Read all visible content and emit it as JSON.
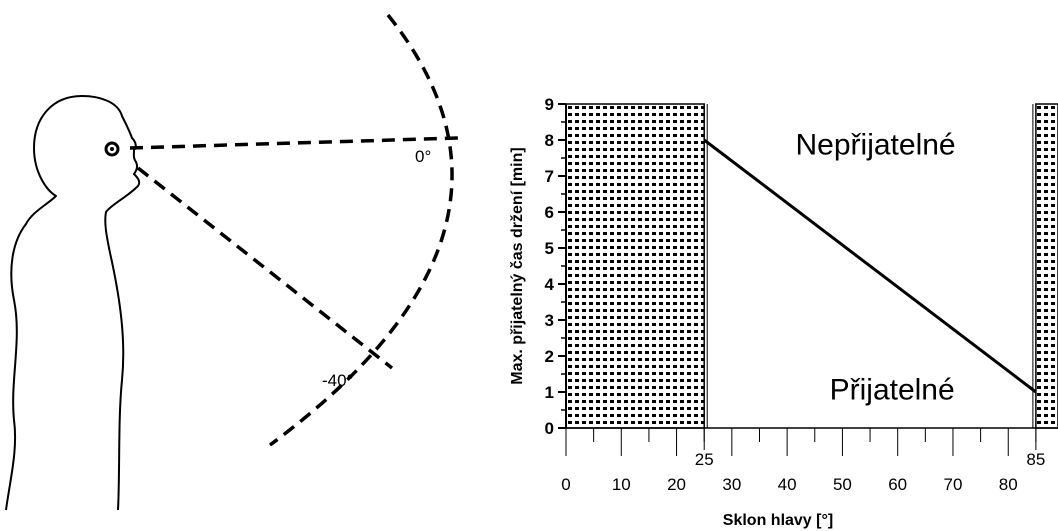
{
  "figure": {
    "angle_labels": [
      "0°",
      "-40°"
    ]
  },
  "chart_data": {
    "type": "line",
    "xlabel": "Sklon hlavy [°]",
    "ylabel": "Max. přijatelný čas držení [min]",
    "xlim": [
      0,
      89
    ],
    "ylim": [
      0,
      9
    ],
    "x_ticks": [
      0,
      10,
      20,
      30,
      40,
      50,
      60,
      70,
      80
    ],
    "x_special_ticks": [
      25,
      85
    ],
    "y_ticks": [
      0,
      1,
      2,
      3,
      4,
      5,
      6,
      7,
      8,
      9
    ],
    "series": [
      {
        "x": [
          25,
          85
        ],
        "y": [
          8,
          1
        ]
      }
    ],
    "shaded_regions": [
      {
        "x": [
          0,
          25
        ],
        "pattern": "dots"
      },
      {
        "x": [
          85,
          89
        ],
        "pattern": "dots"
      }
    ],
    "annotations": [
      {
        "text": "Nepřijatelné",
        "x": 56,
        "y": 7.9
      },
      {
        "text": "Přijatelné",
        "x": 59,
        "y": 1.1
      }
    ],
    "grid": false,
    "legend": "none"
  }
}
